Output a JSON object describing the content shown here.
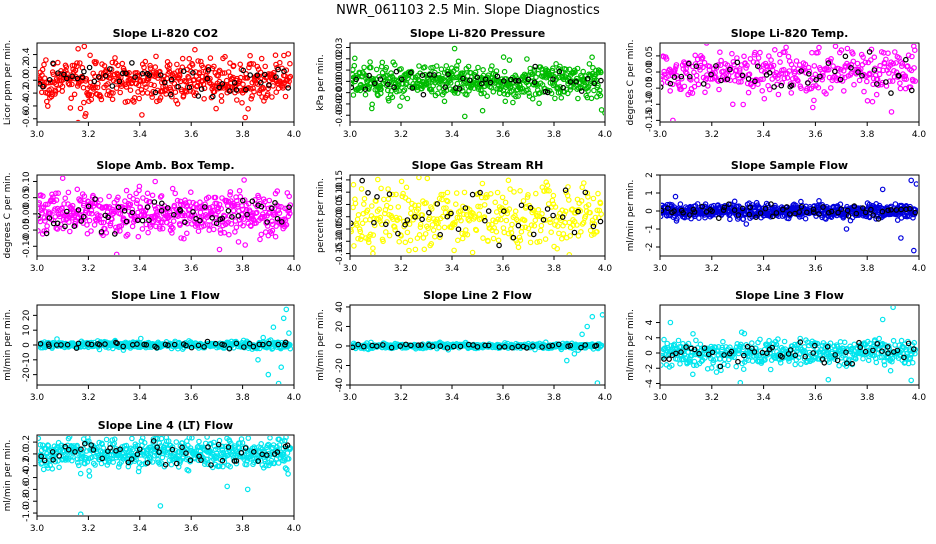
{
  "page_title": "NWR_061103  2.5 Min. Slope Diagnostics",
  "colors": {
    "dots_main_note": "per panel",
    "dots_overlay": "#000000",
    "axis": "#000000"
  },
  "chart_data": [
    {
      "type": "scatter",
      "title": "Slope Li-820 CO2",
      "ylabel": "Licor ppm per min.",
      "color": "#ff0000",
      "xlim": [
        3.0,
        4.0
      ],
      "ylim": [
        -0.65,
        0.58
      ],
      "yticks": [
        -0.6,
        -0.4,
        -0.2,
        0.0,
        0.2,
        0.4
      ],
      "ytick_labels": [
        "-0.6",
        "-0.4",
        "-0.2",
        "0.0",
        "0.2",
        "0.4"
      ],
      "xticks": [
        3.0,
        3.2,
        3.4,
        3.6,
        3.8,
        4.0
      ],
      "xtick_labels": [
        "3.0",
        "3.2",
        "3.4",
        "3.6",
        "3.8",
        "4.0"
      ],
      "n_main": 520,
      "n_black": 55,
      "spread": 0.16,
      "outliers": [
        [
          3.16,
          0.49
        ],
        [
          3.19,
          -0.52
        ],
        [
          3.16,
          -0.66
        ],
        [
          3.81,
          -0.58
        ],
        [
          3.13,
          -0.43
        ]
      ]
    },
    {
      "type": "scatter",
      "title": "Slope Li-820 Pressure",
      "ylabel": "kPa per min.",
      "color": "#00bb00",
      "xlim": [
        3.0,
        4.0
      ],
      "ylim": [
        -0.036,
        0.034
      ],
      "yticks": [
        -0.03,
        -0.02,
        -0.01,
        0.0,
        0.01,
        0.02,
        0.03
      ],
      "ytick_labels": [
        "-0.03",
        "-0.02",
        "-0.01",
        "0.00",
        "0.01",
        "0.02",
        "0.03"
      ],
      "xticks": [
        3.0,
        3.2,
        3.4,
        3.6,
        3.8,
        4.0
      ],
      "xtick_labels": [
        "3.0",
        "3.2",
        "3.4",
        "3.6",
        "3.8",
        "4.0"
      ],
      "n_main": 560,
      "n_black": 45,
      "spread": 0.008,
      "outliers": [
        [
          3.45,
          -0.031
        ],
        [
          3.41,
          0.029
        ],
        [
          4.0,
          -0.028
        ],
        [
          3.52,
          -0.026
        ]
      ]
    },
    {
      "type": "scatter",
      "title": "Slope Li-820 Temp.",
      "ylabel": "degrees C per min.",
      "color": "#ff00ff",
      "xlim": [
        3.0,
        4.0
      ],
      "ylim": [
        -0.155,
        0.09
      ],
      "yticks": [
        -0.15,
        -0.1,
        -0.05,
        0.0,
        0.05
      ],
      "ytick_labels": [
        "-0.15",
        "-0.10",
        "-0.05",
        "0.00",
        "0.05"
      ],
      "xticks": [
        3.0,
        3.2,
        3.4,
        3.6,
        3.8,
        4.0
      ],
      "xtick_labels": [
        "3.0",
        "3.2",
        "3.4",
        "3.6",
        "3.8",
        "4.0"
      ],
      "n_main": 380,
      "n_black": 45,
      "spread": 0.035,
      "outliers": [
        [
          3.05,
          -0.15
        ],
        [
          3.18,
          0.09
        ],
        [
          3.59,
          -0.11
        ],
        [
          3.98,
          0.08
        ]
      ]
    },
    {
      "type": "scatter",
      "title": "Slope Amb. Box Temp.",
      "ylabel": "degrees C per min.",
      "color": "#ff00ff",
      "xlim": [
        3.0,
        4.0
      ],
      "ylim": [
        -0.13,
        0.12
      ],
      "yticks": [
        -0.1,
        -0.05,
        0.0,
        0.05,
        0.1
      ],
      "ytick_labels": [
        "-0.10",
        "-0.05",
        "0.00",
        "0.05",
        "0.10"
      ],
      "xticks": [
        3.0,
        3.2,
        3.4,
        3.6,
        3.8,
        4.0
      ],
      "xtick_labels": [
        "3.0",
        "3.2",
        "3.4",
        "3.6",
        "3.8",
        "4.0"
      ],
      "n_main": 520,
      "n_black": 55,
      "spread": 0.032,
      "outliers": [
        [
          3.1,
          0.11
        ],
        [
          3.31,
          -0.125
        ],
        [
          3.71,
          -0.11
        ],
        [
          3.46,
          0.1
        ]
      ]
    },
    {
      "type": "scatter",
      "title": "Slope Gas Stream RH",
      "ylabel": "percent per min.",
      "color": "#ffff00",
      "xlim": [
        3.0,
        4.0
      ],
      "ylim": [
        -0.16,
        0.17
      ],
      "yticks": [
        -0.15,
        -0.1,
        -0.05,
        0.0,
        0.05,
        0.1,
        0.15
      ],
      "ytick_labels": [
        "-0.15",
        "-0.10",
        "-0.05",
        "0.00",
        "0.05",
        "0.10",
        "0.15"
      ],
      "xticks": [
        3.0,
        3.2,
        3.4,
        3.6,
        3.8,
        4.0
      ],
      "xtick_labels": [
        "3.0",
        "3.2",
        "3.4",
        "3.6",
        "3.8",
        "4.0"
      ],
      "n_main": 380,
      "n_black": 40,
      "spread": 0.07,
      "outliers": [
        [
          3.09,
          -0.15
        ],
        [
          3.27,
          0.16
        ],
        [
          3.86,
          -0.155
        ]
      ]
    },
    {
      "type": "scatter",
      "title": "Slope Sample Flow",
      "ylabel": "ml/min per min.",
      "color": "#0000dd",
      "xlim": [
        3.0,
        4.0
      ],
      "ylim": [
        -2.5,
        2.0
      ],
      "yticks": [
        -2,
        -1,
        0,
        1,
        2
      ],
      "ytick_labels": [
        "-2",
        "-1",
        "0",
        "1",
        "2"
      ],
      "xticks": [
        3.0,
        3.2,
        3.4,
        3.6,
        3.8,
        4.0
      ],
      "xtick_labels": [
        "3.0",
        "3.2",
        "3.4",
        "3.6",
        "3.8",
        "4.0"
      ],
      "n_main": 620,
      "n_black": 60,
      "spread": 0.2,
      "outliers": [
        [
          3.97,
          1.7
        ],
        [
          3.99,
          1.5
        ],
        [
          3.98,
          -2.2
        ],
        [
          3.72,
          -1.0
        ],
        [
          3.86,
          1.2
        ],
        [
          3.93,
          -1.5
        ],
        [
          3.06,
          0.8
        ]
      ]
    },
    {
      "type": "scatter",
      "title": "Slope Line 1 Flow",
      "ylabel": "ml/min per min.",
      "color": "#00e5ee",
      "xlim": [
        3.0,
        4.0
      ],
      "ylim": [
        -27,
        27
      ],
      "yticks": [
        -20,
        -10,
        0,
        10,
        20
      ],
      "ytick_labels": [
        "-20",
        "-10",
        "0",
        "10",
        "20"
      ],
      "xticks": [
        3.0,
        3.2,
        3.4,
        3.6,
        3.8,
        4.0
      ],
      "xtick_labels": [
        "3.0",
        "3.2",
        "3.4",
        "3.6",
        "3.8",
        "4.0"
      ],
      "n_main": 470,
      "n_black": 45,
      "spread": 1.1,
      "outliers": [
        [
          3.94,
          -26
        ],
        [
          3.97,
          24
        ],
        [
          3.92,
          12
        ],
        [
          3.95,
          -15
        ],
        [
          3.86,
          -10
        ],
        [
          3.98,
          8
        ],
        [
          3.9,
          -20
        ],
        [
          3.96,
          18
        ],
        [
          3.88,
          5
        ]
      ]
    },
    {
      "type": "scatter",
      "title": "Slope Line 2 Flow",
      "ylabel": "ml/min per min.",
      "color": "#00e5ee",
      "xlim": [
        3.0,
        4.0
      ],
      "ylim": [
        -40,
        42
      ],
      "yticks": [
        -40,
        -20,
        0,
        20,
        40
      ],
      "ytick_labels": [
        "-40",
        "-20",
        "0",
        "20",
        "40"
      ],
      "xticks": [
        3.0,
        3.2,
        3.4,
        3.6,
        3.8,
        4.0
      ],
      "xtick_labels": [
        "3.0",
        "3.2",
        "3.4",
        "3.6",
        "3.8",
        "4.0"
      ],
      "n_main": 420,
      "n_black": 40,
      "spread": 1.3,
      "outliers": [
        [
          3.97,
          -38
        ],
        [
          3.95,
          30
        ],
        [
          3.99,
          32
        ],
        [
          3.93,
          20
        ],
        [
          3.85,
          -15
        ],
        [
          3.91,
          12
        ],
        [
          3.88,
          -8
        ]
      ]
    },
    {
      "type": "scatter",
      "title": "Slope Line 3 Flow",
      "ylabel": "ml/min per min.",
      "color": "#00e5ee",
      "xlim": [
        3.0,
        4.0
      ],
      "ylim": [
        -4.2,
        6.3
      ],
      "yticks": [
        -4,
        -2,
        0,
        2,
        4
      ],
      "ytick_labels": [
        "-4",
        "-2",
        "0",
        "2",
        "4"
      ],
      "xticks": [
        3.0,
        3.2,
        3.4,
        3.6,
        3.8,
        4.0
      ],
      "xtick_labels": [
        "3.0",
        "3.2",
        "3.4",
        "3.6",
        "3.8",
        "4.0"
      ],
      "n_main": 480,
      "n_black": 55,
      "spread": 0.9,
      "outliers": [
        [
          3.9,
          6.0
        ],
        [
          3.31,
          -3.9
        ],
        [
          3.65,
          -3.5
        ],
        [
          3.97,
          -3.6
        ],
        [
          3.86,
          4.4
        ],
        [
          3.04,
          4.0
        ]
      ]
    },
    {
      "type": "scatter",
      "title": "Slope Line 4 (LT) Flow",
      "ylabel": "ml/min per min.",
      "color": "#00e5ee",
      "xlim": [
        3.0,
        4.0
      ],
      "ylim": [
        -1.05,
        0.32
      ],
      "yticks": [
        -1.0,
        -0.8,
        -0.6,
        -0.4,
        -0.2,
        0.0,
        0.2
      ],
      "ytick_labels": [
        "-1.0",
        "-0.8",
        "-0.6",
        "-0.4",
        "-0.2",
        "0.0",
        "0.2"
      ],
      "xticks": [
        3.0,
        3.2,
        3.4,
        3.6,
        3.8,
        4.0
      ],
      "xtick_labels": [
        "3.0",
        "3.2",
        "3.4",
        "3.6",
        "3.8",
        "4.0"
      ],
      "n_main": 560,
      "n_black": 50,
      "spread": 0.12,
      "outliers": [
        [
          3.17,
          -1.02
        ],
        [
          3.48,
          -0.88
        ],
        [
          3.82,
          -0.6
        ],
        [
          3.74,
          -0.55
        ]
      ]
    }
  ]
}
